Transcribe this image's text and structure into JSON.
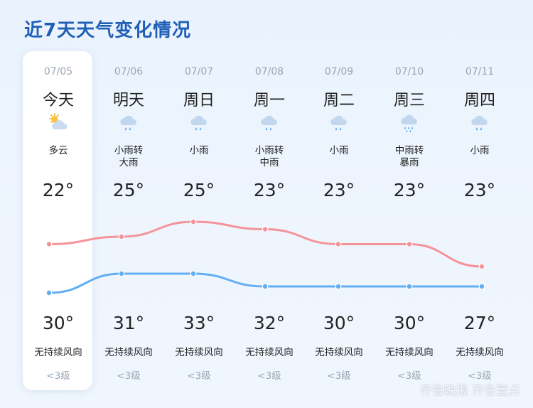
{
  "title": "近7天天气变化情况",
  "watermark": "齐鲁晚报 齐鲁壹点",
  "colors": {
    "high_line": "#f4949a",
    "low_line": "#63aef2",
    "title": "#1f5fb5"
  },
  "days": [
    {
      "date": "07/05",
      "label": "今天",
      "icon": "partly-cloudy-icon",
      "cond": [
        "多云"
      ],
      "low": "22°",
      "high": "30°",
      "wind": "无持续风向",
      "level": "<3级",
      "low_val": 22,
      "high_val": 30
    },
    {
      "date": "07/06",
      "label": "明天",
      "icon": "rain-cloud-icon",
      "cond": [
        "小雨转",
        "大雨"
      ],
      "low": "25°",
      "high": "31°",
      "wind": "无持续风向",
      "level": "<3级",
      "low_val": 25,
      "high_val": 31
    },
    {
      "date": "07/07",
      "label": "周日",
      "icon": "rain-cloud-icon",
      "cond": [
        "小雨"
      ],
      "low": "25°",
      "high": "33°",
      "wind": "无持续风向",
      "level": "<3级",
      "low_val": 25,
      "high_val": 33
    },
    {
      "date": "07/08",
      "label": "周一",
      "icon": "rain-cloud-icon",
      "cond": [
        "小雨转",
        "中雨"
      ],
      "low": "23°",
      "high": "32°",
      "wind": "无持续风向",
      "level": "<3级",
      "low_val": 23,
      "high_val": 32
    },
    {
      "date": "07/09",
      "label": "周二",
      "icon": "rain-cloud-icon",
      "cond": [
        "小雨"
      ],
      "low": "23°",
      "high": "30°",
      "wind": "无持续风向",
      "level": "<3级",
      "low_val": 23,
      "high_val": 30
    },
    {
      "date": "07/10",
      "label": "周三",
      "icon": "heavy-rain-cloud-icon",
      "cond": [
        "中雨转",
        "暴雨"
      ],
      "low": "23°",
      "high": "30°",
      "wind": "无持续风向",
      "level": "<3级",
      "low_val": 23,
      "high_val": 30
    },
    {
      "date": "07/11",
      "label": "周四",
      "icon": "rain-cloud-icon",
      "cond": [
        "小雨"
      ],
      "low": "23°",
      "high": "27°",
      "wind": "无持续风向",
      "level": "<3级",
      "low_val": 23,
      "high_val": 27
    }
  ]
}
